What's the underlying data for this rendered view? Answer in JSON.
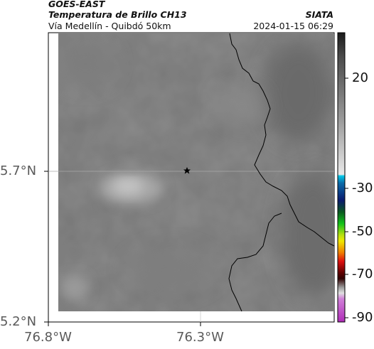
{
  "header": {
    "satellite": "GOES-EAST",
    "product": "Temperatura de Brillo CH13",
    "org": "SIATA",
    "region": "Vía Medellín - Quibdó 50km",
    "datetime": "2024-01-15 06:29"
  },
  "axes": {
    "lat_ticks": [
      "5.7°N",
      "5.2°N"
    ],
    "lon_ticks": [
      "76.8°W",
      "76.3°W"
    ]
  },
  "colorbar": {
    "ticks": [
      "20",
      "-30",
      "-50",
      "-70",
      "-90"
    ],
    "colors": {
      "top": "#1a1a1a",
      "cyan": "#00c8e8",
      "navy": "#0a1a6e",
      "green": "#12c21a",
      "yellow": "#f0e800",
      "red": "#e01010",
      "dark_red": "#300000",
      "magenta": "#b02cb8"
    }
  },
  "map": {
    "marker": "star-marker",
    "background_gray": "#767676",
    "border_color": "#000000"
  }
}
